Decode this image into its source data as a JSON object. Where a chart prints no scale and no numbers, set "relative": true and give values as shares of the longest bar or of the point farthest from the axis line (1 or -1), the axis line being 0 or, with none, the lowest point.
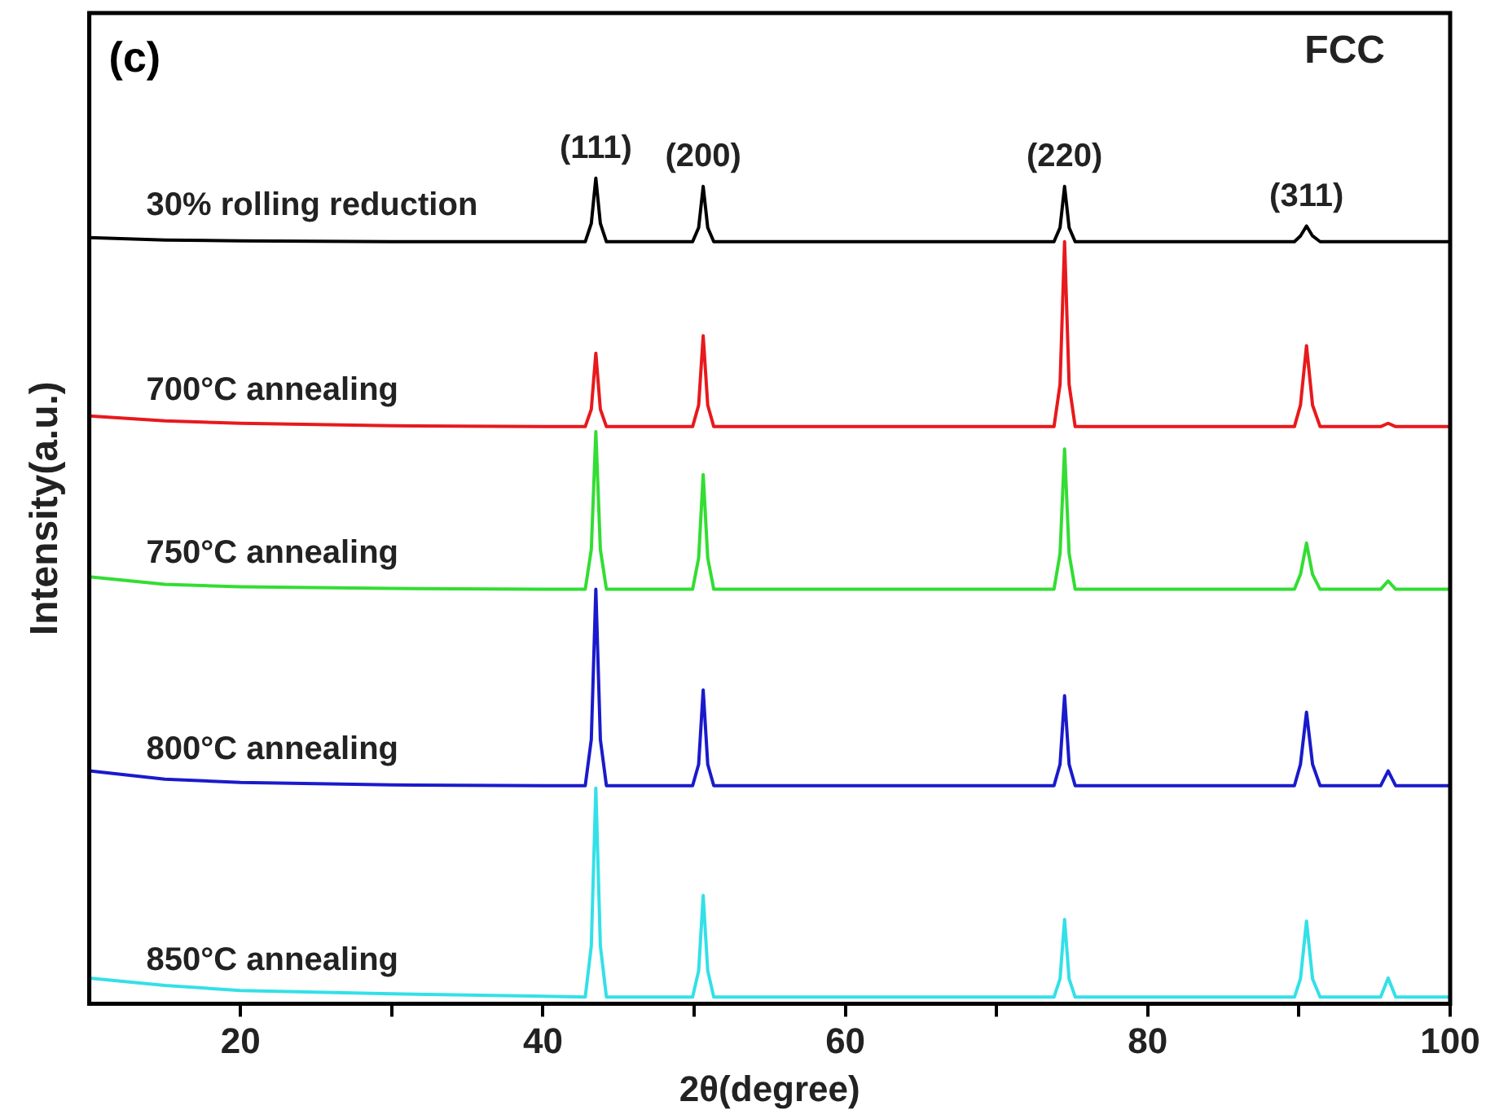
{
  "chart_data": {
    "type": "line",
    "relative": true,
    "xlabel": "2θ(degree)",
    "ylabel": "Intensity(a.u.)",
    "xlim": [
      10,
      100
    ],
    "xticks": [
      20,
      {
        "value": 30,
        "label": null
      },
      40,
      {
        "value": 50,
        "label": null
      },
      60,
      {
        "value": 70,
        "label": null
      },
      80,
      {
        "value": 90,
        "label": null
      },
      100
    ],
    "grid": false,
    "legend": false,
    "marker": "none",
    "line_style": "solid",
    "annotations": [
      "(c)",
      "FCC",
      {
        "text": "(111)",
        "x": 43.5,
        "y": 1.0
      },
      {
        "text": "(200)",
        "x": 50.6,
        "y": 0.99
      },
      {
        "text": "(220)",
        "x": 74.5,
        "y": 0.99
      },
      {
        "text": "(311)",
        "x": 90.5,
        "y": 0.942
      }
    ],
    "x": [
      10,
      15,
      20,
      30,
      40,
      42.8,
      43.2,
      43.5,
      43.8,
      44.2,
      49.9,
      50.3,
      50.6,
      50.9,
      51.3,
      60,
      73.8,
      74.2,
      74.5,
      74.8,
      75.2,
      85,
      89.7,
      90.1,
      90.5,
      90.9,
      91.4,
      95.4,
      95.9,
      96.4,
      100
    ],
    "series": [
      {
        "name": "30% rolling reduction",
        "color": "#000000",
        "values": [
          0.928,
          0.925,
          0.924,
          0.923,
          0.923,
          0.923,
          0.945,
          1.0,
          0.945,
          0.923,
          0.923,
          0.94,
          0.99,
          0.94,
          0.923,
          0.923,
          0.923,
          0.94,
          0.99,
          0.94,
          0.923,
          0.923,
          0.923,
          0.93,
          0.942,
          0.93,
          0.923,
          0.923,
          0.923,
          0.923,
          0.923
        ]
      },
      {
        "name": "700°C annealing",
        "color": "#e8191c",
        "values": [
          0.712,
          0.706,
          0.703,
          0.7,
          0.699,
          0.699,
          0.72,
          0.788,
          0.72,
          0.699,
          0.699,
          0.725,
          0.809,
          0.725,
          0.699,
          0.699,
          0.699,
          0.75,
          0.923,
          0.75,
          0.699,
          0.699,
          0.699,
          0.725,
          0.797,
          0.725,
          0.699,
          0.699,
          0.703,
          0.699,
          0.699
        ]
      },
      {
        "name": "750°C annealing",
        "color": "#33dd33",
        "values": [
          0.517,
          0.508,
          0.505,
          0.503,
          0.502,
          0.502,
          0.55,
          0.693,
          0.55,
          0.502,
          0.502,
          0.54,
          0.641,
          0.54,
          0.502,
          0.502,
          0.502,
          0.545,
          0.672,
          0.545,
          0.502,
          0.502,
          0.502,
          0.52,
          0.558,
          0.52,
          0.502,
          0.502,
          0.512,
          0.502,
          0.502
        ]
      },
      {
        "name": "800°C annealing",
        "color": "#1a1acc",
        "values": [
          0.282,
          0.272,
          0.268,
          0.265,
          0.264,
          0.264,
          0.32,
          0.502,
          0.32,
          0.264,
          0.264,
          0.29,
          0.38,
          0.29,
          0.264,
          0.264,
          0.264,
          0.29,
          0.373,
          0.29,
          0.264,
          0.264,
          0.264,
          0.29,
          0.353,
          0.29,
          0.264,
          0.264,
          0.282,
          0.264,
          0.264
        ]
      },
      {
        "name": "850°C annealing",
        "color": "#33e0e8",
        "values": [
          0.031,
          0.022,
          0.016,
          0.012,
          0.009,
          0.008,
          0.07,
          0.261,
          0.07,
          0.008,
          0.008,
          0.04,
          0.131,
          0.04,
          0.008,
          0.008,
          0.008,
          0.03,
          0.102,
          0.03,
          0.008,
          0.008,
          0.008,
          0.03,
          0.1,
          0.03,
          0.008,
          0.008,
          0.031,
          0.008,
          0.008
        ]
      }
    ]
  }
}
